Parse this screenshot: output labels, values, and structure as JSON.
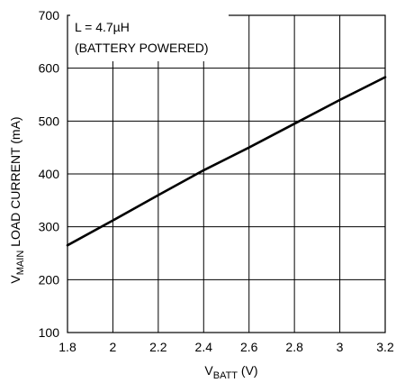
{
  "chart_data": {
    "type": "line",
    "title": "",
    "annotation_lines": [
      "L = 4.7µH",
      "(BATTERY POWERED)"
    ],
    "xlabel": {
      "main": "V",
      "sub": "BATT",
      "suffix": " (V)"
    },
    "ylabel": {
      "main": "V",
      "sub": "MAIN",
      "suffix": " LOAD CURRENT (mA)"
    },
    "xlim": [
      1.8,
      3.2
    ],
    "ylim": [
      100,
      700
    ],
    "x_ticks": [
      1.8,
      2.0,
      2.2,
      2.4,
      2.6,
      2.8,
      3.0,
      3.2
    ],
    "x_tick_labels": [
      "1.8",
      "2",
      "2.2",
      "2.4",
      "2.6",
      "2.8",
      "3",
      "3.2"
    ],
    "y_ticks": [
      100,
      200,
      300,
      400,
      500,
      600,
      700
    ],
    "y_tick_labels": [
      "100",
      "200",
      "300",
      "400",
      "500",
      "600",
      "700"
    ],
    "grid": true,
    "line_color": "#000000",
    "series": [
      {
        "x": [
          1.8,
          2.0,
          2.2,
          2.4,
          2.6,
          2.8,
          3.0,
          3.2
        ],
        "values": [
          265,
          312,
          360,
          407,
          450,
          495,
          540,
          583
        ]
      }
    ]
  }
}
